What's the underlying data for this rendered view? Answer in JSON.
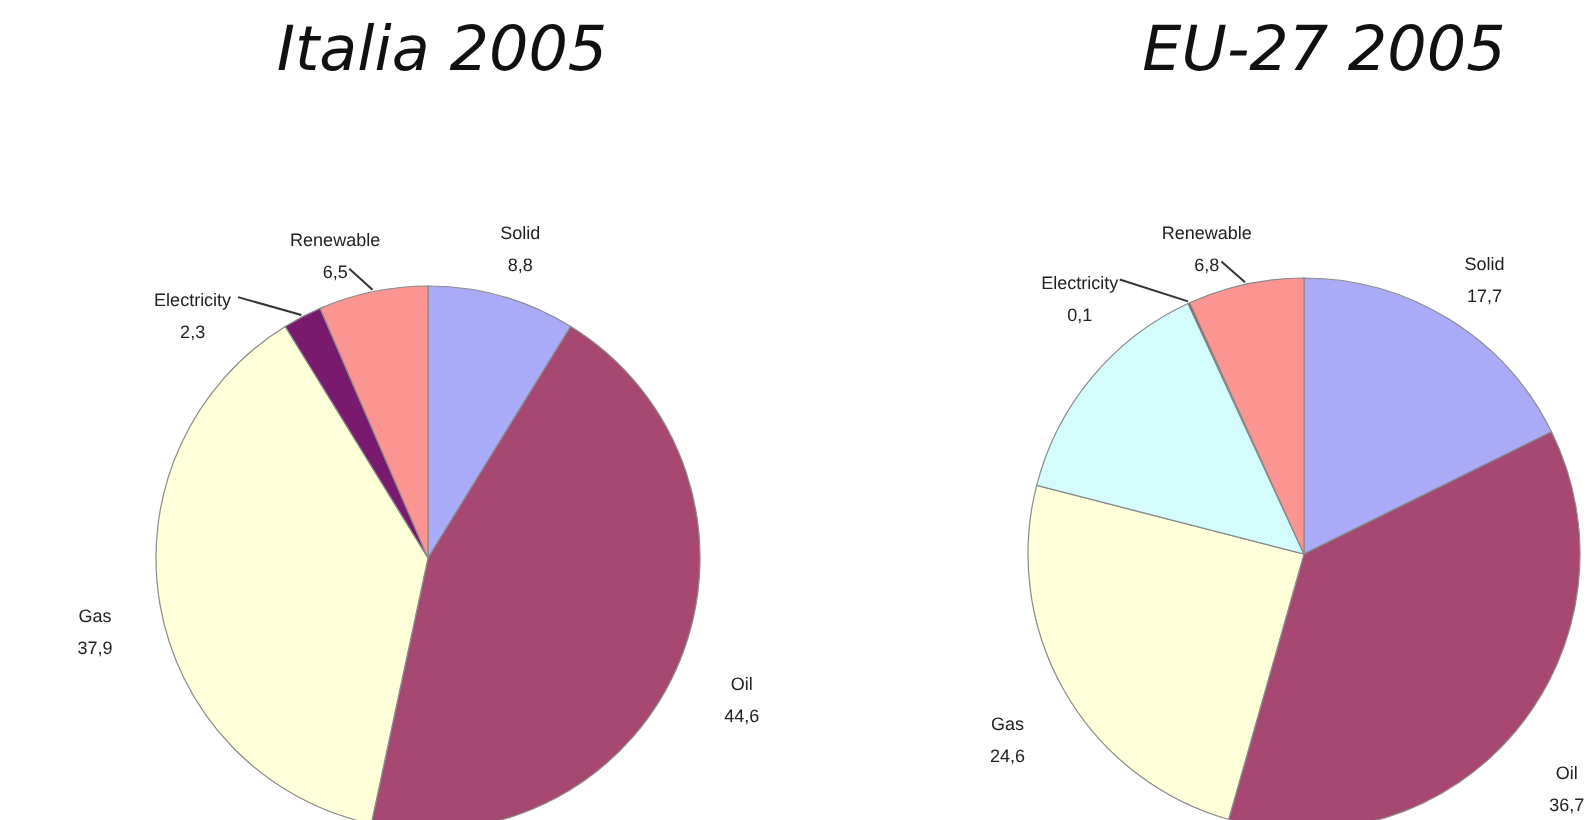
{
  "chart_data": [
    {
      "type": "pie",
      "title": "Italia 2005",
      "categories": [
        "Solid",
        "Oil",
        "Gas",
        "Electricity",
        "Renewable"
      ],
      "values": [
        8.8,
        44.6,
        37.9,
        2.3,
        6.5
      ],
      "value_labels": [
        "8,8",
        "44,6",
        "37,9",
        "2,3",
        "6,5"
      ],
      "colors": [
        "#a9abf9",
        "#a64872",
        "#ffffd9",
        "#7a1a6e",
        "#fc9592"
      ]
    },
    {
      "type": "pie",
      "title": "EU-27 2005",
      "categories": [
        "Solid",
        "Oil",
        "Gas",
        null,
        "Electricity",
        "Renewable"
      ],
      "values": [
        17.7,
        36.7,
        24.6,
        14.1,
        0.1,
        6.8
      ],
      "value_labels": [
        "17,7",
        "36,7",
        "24,6",
        null,
        "0,1",
        "6,8"
      ],
      "colors": [
        "#a9abf9",
        "#a64872",
        "#ffffd9",
        "#d4fcfc",
        "#7a1a6e",
        "#fc9592"
      ]
    }
  ]
}
